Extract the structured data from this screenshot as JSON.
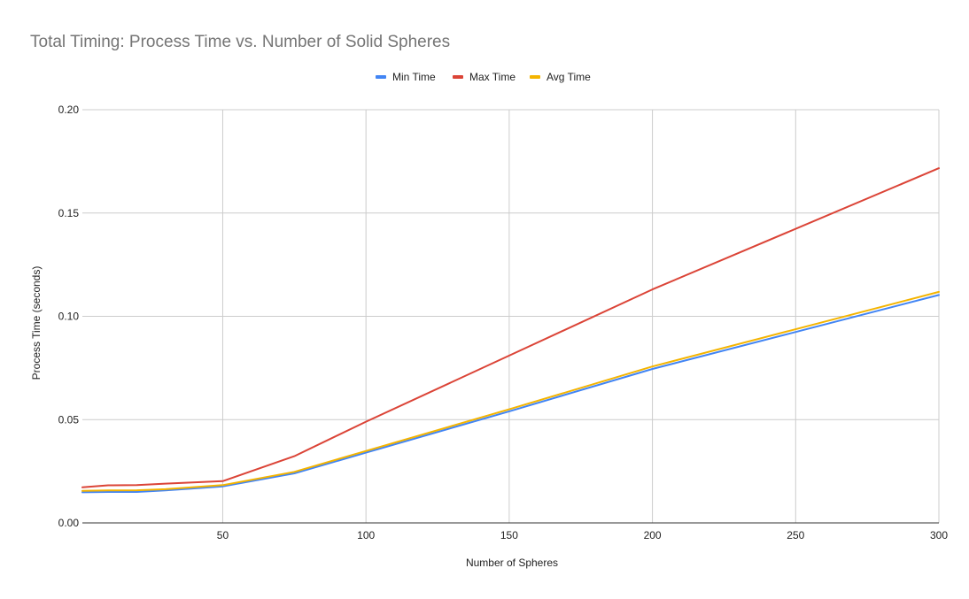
{
  "chart_data": {
    "type": "line",
    "title": "Total Timing: Process Time vs. Number of Solid Spheres",
    "xlabel": "Number of Spheres",
    "ylabel": "Process Time (seconds)",
    "xlim": [
      1,
      300
    ],
    "ylim": [
      0,
      0.2
    ],
    "x_ticks": [
      50,
      100,
      150,
      200,
      250,
      300
    ],
    "y_ticks": [
      0,
      0.05,
      0.1,
      0.15,
      0.2
    ],
    "y_tick_labels": [
      "0.00",
      "0.05",
      "0.10",
      "0.15",
      "0.20"
    ],
    "grid": true,
    "legend_position": "top-center",
    "x": [
      1,
      10,
      20,
      30,
      50,
      75,
      100,
      150,
      200,
      300
    ],
    "series": [
      {
        "name": "Min Time",
        "color": "#4285f4",
        "values": [
          0.0148,
          0.015,
          0.015,
          0.0157,
          0.0177,
          0.024,
          0.034,
          0.054,
          0.0745,
          0.1103
        ]
      },
      {
        "name": "Max Time",
        "color": "#db4437",
        "values": [
          0.0172,
          0.0182,
          0.0183,
          0.019,
          0.0202,
          0.0323,
          0.049,
          0.081,
          0.113,
          0.1717
        ]
      },
      {
        "name": "Avg Time",
        "color": "#f4b400",
        "values": [
          0.0155,
          0.0157,
          0.0158,
          0.0163,
          0.0183,
          0.0247,
          0.0348,
          0.055,
          0.0757,
          0.1118
        ]
      }
    ]
  }
}
